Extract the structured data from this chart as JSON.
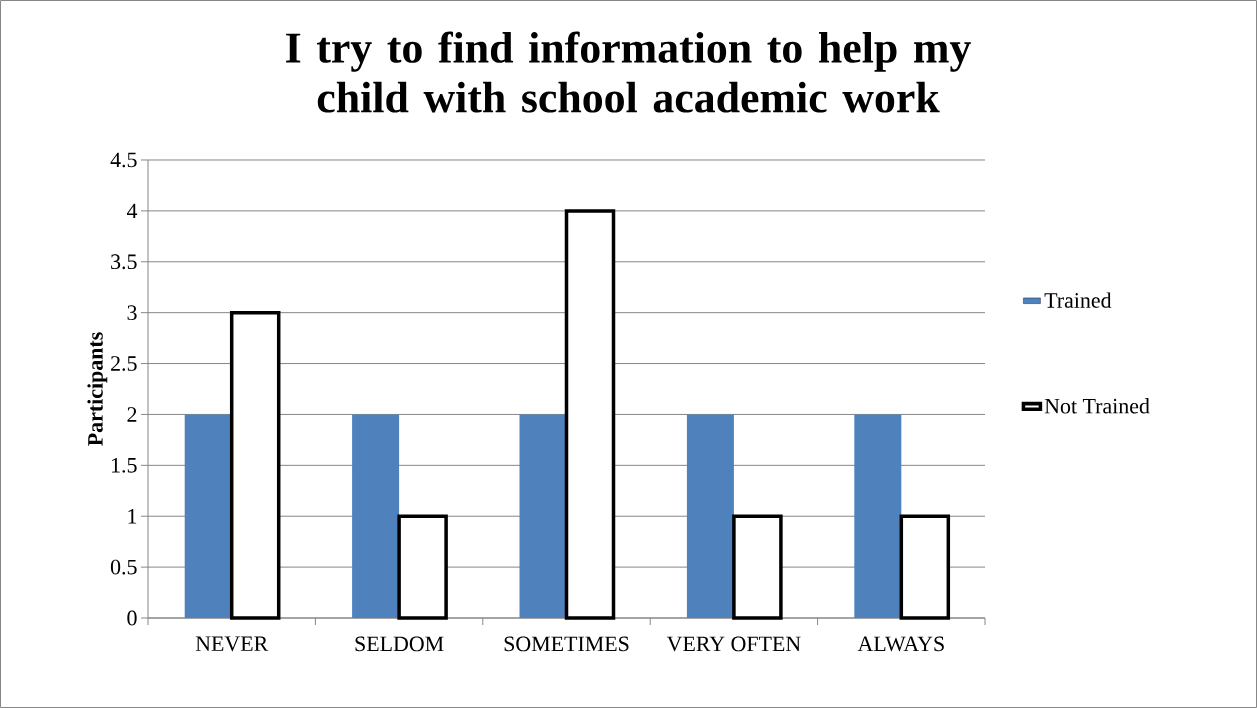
{
  "chart_data": {
    "type": "bar",
    "title": "I try to find information to help my child with school academic work",
    "ylabel": "Participants",
    "categories": [
      "NEVER",
      "SELDOM",
      "SOMETIMES",
      "VERY OFTEN",
      "ALWAYS"
    ],
    "series": [
      {
        "name": "Trained",
        "color": "#4f81bd",
        "values": [
          2,
          2,
          2,
          2,
          2
        ]
      },
      {
        "name": "Not Trained",
        "color": "#ffffff",
        "values": [
          3,
          1,
          4,
          1,
          1
        ]
      }
    ],
    "ylim": [
      0,
      4.5
    ],
    "yticks": [
      0,
      0.5,
      1,
      1.5,
      2,
      2.5,
      3,
      3.5,
      4,
      4.5
    ],
    "grid": "y",
    "legend": "right"
  }
}
